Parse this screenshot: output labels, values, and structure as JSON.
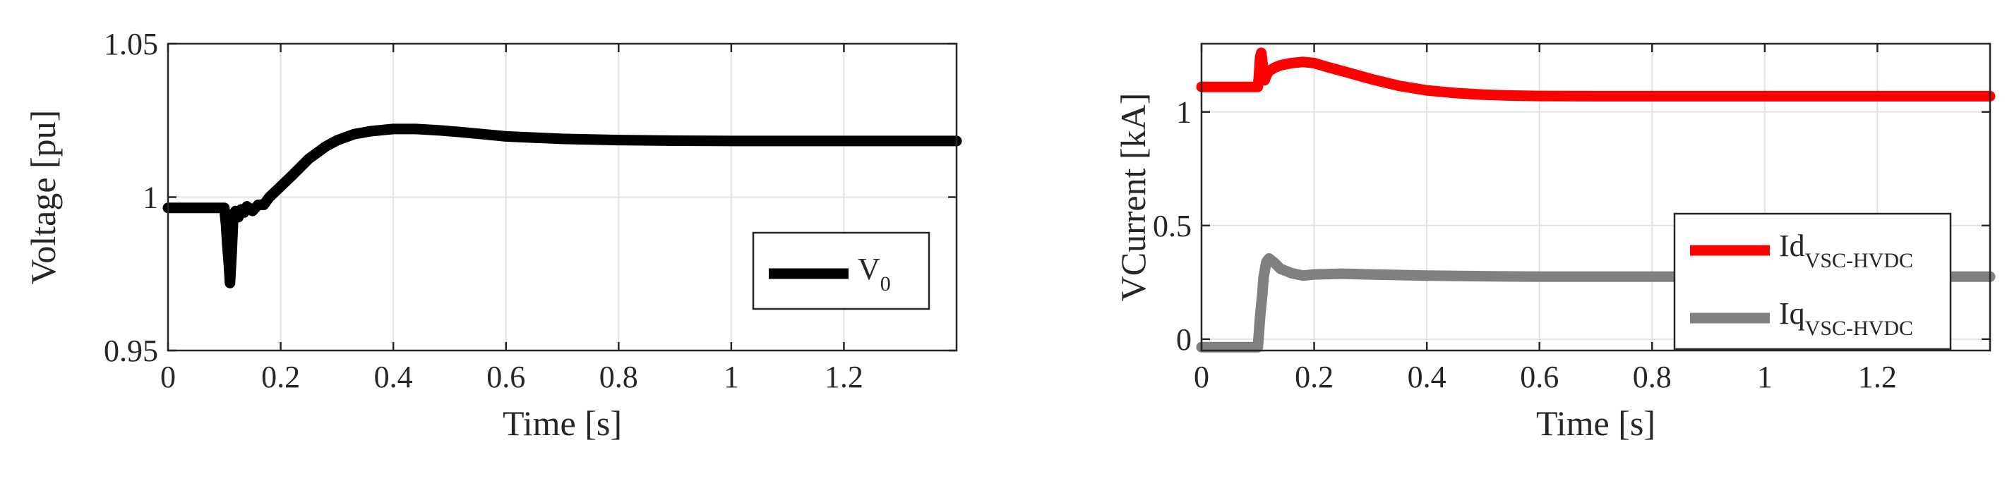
{
  "chart_data": [
    {
      "type": "line",
      "xlabel": "Time [s]",
      "ylabel": "Voltage [pu]",
      "xlim": [
        0,
        1.4
      ],
      "ylim": [
        0.95,
        1.05
      ],
      "xticks": [
        0,
        0.2,
        0.4,
        0.6,
        0.8,
        1,
        1.2
      ],
      "xtick_labels": [
        "0",
        "0.2",
        "0.4",
        "0.6",
        "0.8",
        "1",
        "1.2"
      ],
      "yticks": [
        0.95,
        1,
        1.05
      ],
      "ytick_labels": [
        "0.95",
        "1",
        "1.05"
      ],
      "grid": true,
      "legend_position": "bottom-right",
      "series": [
        {
          "name": "V",
          "name_sub": "0",
          "color": "#000000",
          "x": [
            0,
            0.1,
            0.103,
            0.105,
            0.108,
            0.11,
            0.113,
            0.116,
            0.12,
            0.125,
            0.13,
            0.135,
            0.14,
            0.15,
            0.16,
            0.17,
            0.18,
            0.2,
            0.22,
            0.25,
            0.28,
            0.3,
            0.33,
            0.36,
            0.4,
            0.44,
            0.48,
            0.52,
            0.56,
            0.6,
            0.7,
            0.8,
            0.9,
            1.0,
            1.1,
            1.2,
            1.3,
            1.4
          ],
          "y": [
            0.9965,
            0.9965,
            0.991,
            0.985,
            0.978,
            0.972,
            0.982,
            0.9945,
            0.9955,
            0.9935,
            0.996,
            0.995,
            0.997,
            0.9955,
            0.9975,
            0.9975,
            1.0,
            1.0035,
            1.007,
            1.0125,
            1.0165,
            1.0185,
            1.0205,
            1.0215,
            1.0222,
            1.0222,
            1.0218,
            1.0212,
            1.0205,
            1.0198,
            1.019,
            1.0186,
            1.0184,
            1.0183,
            1.0183,
            1.0183,
            1.0183,
            1.0183
          ]
        }
      ]
    },
    {
      "type": "line",
      "xlabel": "Time [s]",
      "ylabel": "VCurrent [kA]",
      "xlim": [
        0,
        1.4
      ],
      "ylim": [
        -0.05,
        1.3
      ],
      "xticks": [
        0,
        0.2,
        0.4,
        0.6,
        0.8,
        1,
        1.2
      ],
      "xtick_labels": [
        "0",
        "0.2",
        "0.4",
        "0.6",
        "0.8",
        "1",
        "1.2"
      ],
      "yticks": [
        0,
        0.5,
        1
      ],
      "ytick_labels": [
        "0",
        "0.5",
        "1"
      ],
      "grid": true,
      "legend_position": "bottom-right",
      "series": [
        {
          "name": "Id",
          "name_sub": "VSC-HVDC",
          "color": "#ff0000",
          "x": [
            0,
            0.1,
            0.102,
            0.104,
            0.106,
            0.108,
            0.11,
            0.112,
            0.115,
            0.12,
            0.13,
            0.14,
            0.16,
            0.18,
            0.2,
            0.22,
            0.25,
            0.3,
            0.35,
            0.4,
            0.45,
            0.5,
            0.55,
            0.6,
            0.7,
            0.8,
            0.9,
            1.0,
            1.1,
            1.2,
            1.3,
            1.4
          ],
          "y": [
            1.11,
            1.11,
            1.16,
            1.24,
            1.26,
            1.22,
            1.15,
            1.14,
            1.16,
            1.18,
            1.195,
            1.205,
            1.215,
            1.22,
            1.215,
            1.2,
            1.18,
            1.145,
            1.115,
            1.095,
            1.083,
            1.076,
            1.072,
            1.07,
            1.069,
            1.069,
            1.069,
            1.069,
            1.069,
            1.069,
            1.069,
            1.069
          ]
        },
        {
          "name": "Iq",
          "name_sub": "VSC-HVDC",
          "color": "#808080",
          "x": [
            0,
            0.1,
            0.102,
            0.104,
            0.106,
            0.108,
            0.11,
            0.115,
            0.12,
            0.125,
            0.13,
            0.14,
            0.15,
            0.16,
            0.18,
            0.2,
            0.25,
            0.3,
            0.4,
            0.5,
            0.6,
            0.7,
            0.8,
            0.9,
            1.0,
            1.1,
            1.2,
            1.3,
            1.4
          ],
          "y": [
            -0.035,
            -0.035,
            0.03,
            0.1,
            0.15,
            0.2,
            0.27,
            0.34,
            0.355,
            0.345,
            0.335,
            0.31,
            0.3,
            0.29,
            0.28,
            0.285,
            0.288,
            0.285,
            0.28,
            0.277,
            0.275,
            0.275,
            0.275,
            0.275,
            0.275,
            0.275,
            0.275,
            0.275,
            0.275
          ]
        }
      ]
    }
  ]
}
